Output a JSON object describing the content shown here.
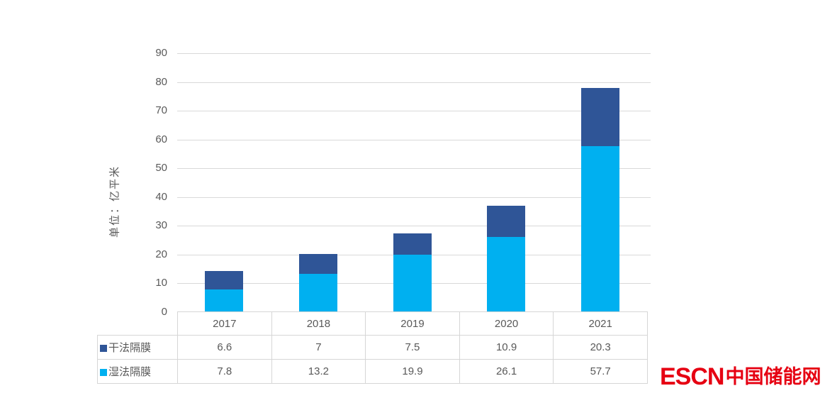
{
  "chart_data": {
    "type": "bar",
    "subtype": "stacked-column",
    "categories": [
      "2017",
      "2018",
      "2019",
      "2020",
      "2021"
    ],
    "series": [
      {
        "name": "干法隔膜",
        "slug": "dry-process-separator",
        "color": "#2F5597",
        "values": [
          6.6,
          7,
          7.5,
          10.9,
          20.3
        ]
      },
      {
        "name": "湿法隔膜",
        "slug": "wet-process-separator",
        "color": "#00B0F0",
        "values": [
          7.8,
          13.2,
          19.9,
          26.1,
          57.7
        ]
      }
    ],
    "stack_order_note": "first listed series renders on top of stack",
    "title": "",
    "xlabel": "",
    "ylabel": "单位：亿平米",
    "ylim": [
      0,
      90
    ],
    "ytick_step": 10,
    "grid": true,
    "gridline_color": "#D9D9D9",
    "text_color": "#595959",
    "legend_position": "data-table-left"
  },
  "watermark": {
    "logo_text": "ESCN",
    "logo_suffix": "中国储能网",
    "color": "#E60012"
  }
}
